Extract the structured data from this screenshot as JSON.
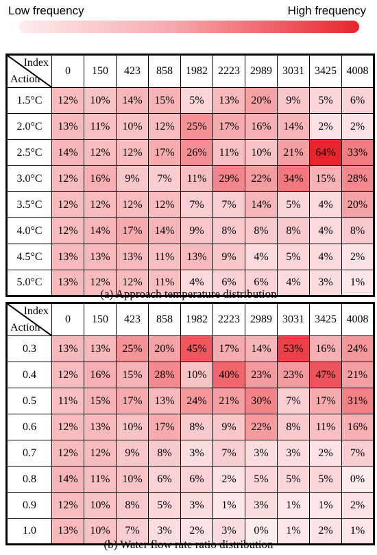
{
  "legend": {
    "low_label": "Low frequency",
    "high_label": "High frequency",
    "low_color": "#fdecee",
    "high_color": "#e8252d"
  },
  "chart_data": [
    {
      "type": "heatmap",
      "title": "",
      "caption": "(a) Approach temperature distribution",
      "col_axis_label": "Index",
      "row_axis_label": "Action",
      "columns": [
        "0",
        "150",
        "423",
        "858",
        "1982",
        "2223",
        "2989",
        "3031",
        "3425",
        "4008"
      ],
      "rows": [
        "1.5°C",
        "2.0°C",
        "2.5°C",
        "3.0°C",
        "3.5°C",
        "4.0°C",
        "4.5°C",
        "5.0°C"
      ],
      "values": [
        [
          12,
          10,
          14,
          15,
          5,
          13,
          20,
          9,
          5,
          6
        ],
        [
          13,
          11,
          10,
          12,
          25,
          17,
          16,
          14,
          2,
          2
        ],
        [
          14,
          12,
          12,
          17,
          26,
          11,
          10,
          21,
          64,
          33
        ],
        [
          12,
          16,
          9,
          7,
          11,
          29,
          22,
          34,
          15,
          28
        ],
        [
          12,
          12,
          12,
          12,
          7,
          7,
          14,
          5,
          4,
          20
        ],
        [
          12,
          14,
          17,
          14,
          9,
          8,
          8,
          8,
          4,
          8
        ],
        [
          13,
          13,
          13,
          11,
          13,
          9,
          4,
          5,
          4,
          2
        ],
        [
          13,
          12,
          12,
          11,
          4,
          6,
          6,
          4,
          3,
          1
        ]
      ],
      "unit": "%"
    },
    {
      "type": "heatmap",
      "title": "",
      "caption": "(b) Water flow rate ratio distribution",
      "col_axis_label": "Index",
      "row_axis_label": "Action",
      "columns": [
        "0",
        "150",
        "423",
        "858",
        "1982",
        "2223",
        "2989",
        "3031",
        "3425",
        "4008"
      ],
      "rows": [
        "0.3",
        "0.4",
        "0.5",
        "0.6",
        "0.7",
        "0.8",
        "0.9",
        "1.0"
      ],
      "values": [
        [
          13,
          13,
          25,
          20,
          45,
          17,
          14,
          53,
          16,
          24
        ],
        [
          12,
          16,
          15,
          28,
          10,
          40,
          23,
          23,
          47,
          21
        ],
        [
          11,
          15,
          17,
          13,
          24,
          21,
          30,
          7,
          17,
          31
        ],
        [
          12,
          13,
          10,
          17,
          8,
          9,
          22,
          8,
          11,
          16
        ],
        [
          12,
          12,
          9,
          8,
          3,
          7,
          3,
          3,
          2,
          7
        ],
        [
          14,
          11,
          10,
          6,
          6,
          2,
          5,
          5,
          5,
          0
        ],
        [
          12,
          10,
          8,
          5,
          3,
          1,
          3,
          1,
          1,
          2
        ],
        [
          13,
          10,
          7,
          3,
          2,
          3,
          0,
          1,
          2,
          1
        ]
      ],
      "unit": "%"
    }
  ]
}
